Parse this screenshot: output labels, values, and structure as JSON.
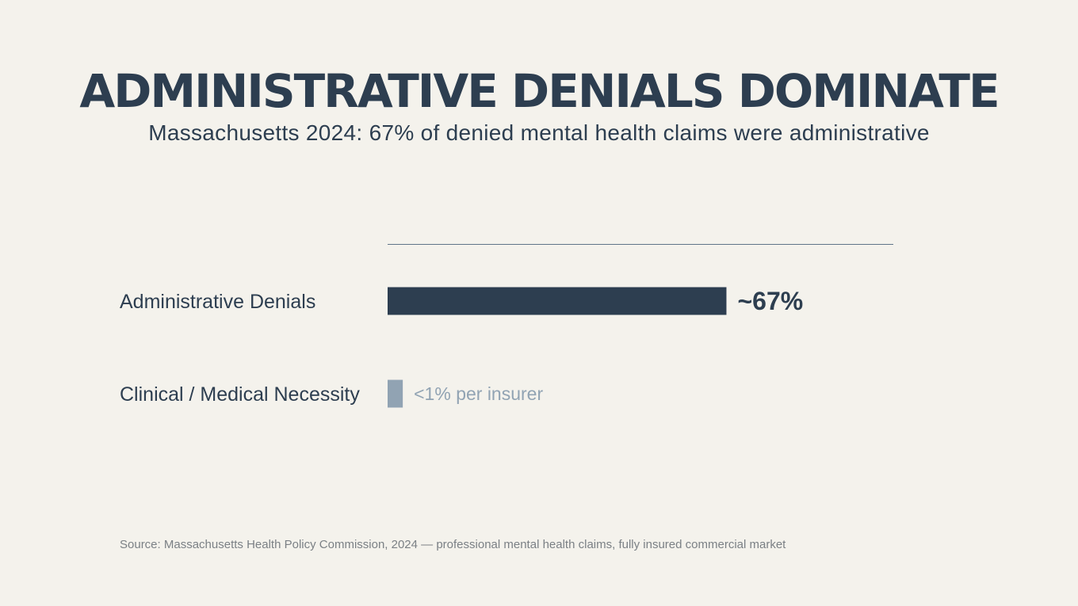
{
  "slide": {
    "title": "ADMINISTRATIVE DENIALS DOMINATE",
    "subtitle": "Massachusetts 2024: 67% of denied mental health claims were administrative",
    "source": "Source: Massachusetts Health Policy Commission, 2024 — professional mental health claims, fully insured commercial market"
  },
  "colors": {
    "primary": "#2d3e50",
    "secondary": "#91a3b3",
    "background": "#f4f2ec",
    "source_text": "#7b8085"
  },
  "chart_data": {
    "type": "bar",
    "orientation": "horizontal",
    "title": "",
    "xlabel": "",
    "ylabel": "",
    "xlim": [
      0,
      100
    ],
    "grid": false,
    "legend": "none",
    "categories": [
      "Administrative Denials",
      "Clinical / Medical Necessity"
    ],
    "values": [
      67,
      3
    ],
    "value_labels": [
      "~67%",
      "<1% per insurer"
    ],
    "bar_colors": [
      "#2d3e50",
      "#91a3b3"
    ],
    "label_colors": [
      "#2d3e50",
      "#91a3b3"
    ]
  }
}
